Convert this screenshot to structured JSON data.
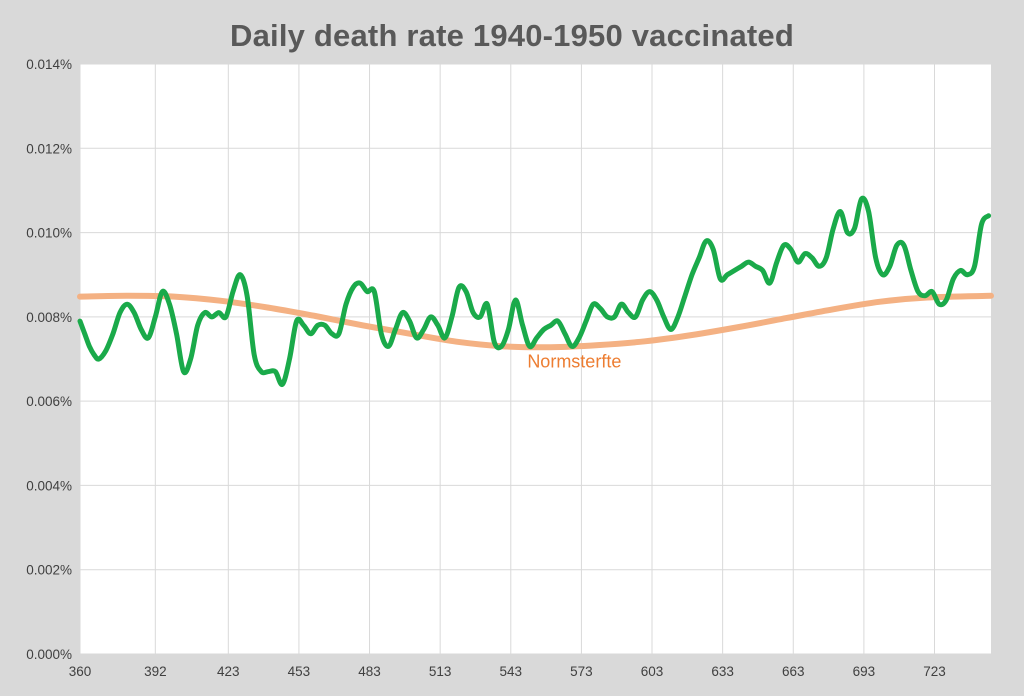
{
  "chart_data": {
    "type": "line",
    "title": "Daily death rate 1940-1950 vaccinated",
    "xlabel": "",
    "ylabel": "",
    "x_tick_labels": [
      "360",
      "392",
      "423",
      "453",
      "483",
      "513",
      "543",
      "573",
      "603",
      "633",
      "663",
      "693",
      "723"
    ],
    "xlim": [
      360,
      747
    ],
    "ylim": [
      0,
      0.014
    ],
    "y_tick_labels": [
      "0.000%",
      "0.002%",
      "0.004%",
      "0.006%",
      "0.008%",
      "0.010%",
      "0.012%",
      "0.014%"
    ],
    "y_ticks": [
      0,
      0.002,
      0.004,
      0.006,
      0.008,
      0.01,
      0.012,
      0.014
    ],
    "grid": true,
    "colors": {
      "observed": "#1aaa4a",
      "normsterfte": "#f4b183",
      "normsterfte_label": "#ed7d31"
    },
    "series": [
      {
        "name": "",
        "x": [
          360,
          362,
          364,
          366,
          368,
          371,
          374,
          377,
          380,
          383,
          386,
          389,
          392,
          395,
          398,
          401,
          404,
          407,
          410,
          413,
          416,
          419,
          422,
          425,
          428,
          431,
          434,
          437,
          440,
          443,
          446,
          449,
          452,
          455,
          458,
          461,
          464,
          467,
          470,
          473,
          476,
          479,
          482,
          485,
          488,
          491,
          494,
          497,
          500,
          503,
          506,
          509,
          512,
          515,
          518,
          521,
          524,
          527,
          530,
          533,
          536,
          539,
          542,
          545,
          548,
          551,
          554,
          557,
          560,
          563,
          566,
          569,
          572,
          575,
          578,
          581,
          584,
          587,
          590,
          593,
          596,
          599,
          602,
          605,
          608,
          611,
          614,
          617,
          620,
          623,
          626,
          629,
          632,
          635,
          638,
          641,
          644,
          647,
          650,
          653,
          656,
          659,
          662,
          665,
          668,
          671,
          674,
          677,
          680,
          683,
          686,
          689,
          692,
          695,
          698,
          701,
          704,
          707,
          710,
          713,
          716,
          719,
          722,
          725,
          728,
          731,
          734,
          737,
          740,
          743,
          746
        ],
        "values": [
          0.0079,
          0.0076,
          0.0073,
          0.0071,
          0.007,
          0.0072,
          0.0076,
          0.0081,
          0.0083,
          0.0081,
          0.0077,
          0.0075,
          0.008,
          0.0086,
          0.0083,
          0.0076,
          0.0067,
          0.007,
          0.0078,
          0.0081,
          0.008,
          0.0081,
          0.008,
          0.0086,
          0.009,
          0.0085,
          0.0071,
          0.0067,
          0.0067,
          0.0067,
          0.0064,
          0.007,
          0.0079,
          0.0078,
          0.0076,
          0.0078,
          0.0078,
          0.0076,
          0.0076,
          0.0083,
          0.0087,
          0.0088,
          0.0086,
          0.0086,
          0.0076,
          0.0073,
          0.0077,
          0.0081,
          0.0079,
          0.0075,
          0.0077,
          0.008,
          0.0078,
          0.0075,
          0.008,
          0.0087,
          0.0086,
          0.0081,
          0.008,
          0.0083,
          0.0074,
          0.0073,
          0.0077,
          0.0084,
          0.0078,
          0.0073,
          0.0075,
          0.0077,
          0.0078,
          0.0079,
          0.0076,
          0.0073,
          0.0075,
          0.0079,
          0.0083,
          0.0082,
          0.008,
          0.008,
          0.0083,
          0.0081,
          0.008,
          0.0084,
          0.0086,
          0.0084,
          0.008,
          0.0077,
          0.008,
          0.0085,
          0.009,
          0.0094,
          0.0098,
          0.0096,
          0.0089,
          0.009,
          0.0091,
          0.0092,
          0.0093,
          0.0092,
          0.0091,
          0.0088,
          0.0093,
          0.0097,
          0.0096,
          0.0093,
          0.0095,
          0.0094,
          0.0092,
          0.0094,
          0.0101,
          0.0105,
          0.01,
          0.0101,
          0.0108,
          0.0105,
          0.0094,
          0.009,
          0.0092,
          0.0097,
          0.0097,
          0.0091,
          0.0086,
          0.0085,
          0.0086,
          0.0083,
          0.0084,
          0.0089,
          0.0091,
          0.009,
          0.0092,
          0.0102,
          0.0104
        ]
      },
      {
        "name": "Normsterfte",
        "x": [
          360,
          380,
          400,
          420,
          440,
          460,
          480,
          500,
          520,
          540,
          560,
          580,
          600,
          620,
          640,
          660,
          680,
          700,
          720,
          747
        ],
        "values": [
          0.00848,
          0.0085,
          0.00848,
          0.00838,
          0.00822,
          0.00802,
          0.0078,
          0.0076,
          0.00741,
          0.0073,
          0.00728,
          0.00733,
          0.00742,
          0.00757,
          0.00776,
          0.00797,
          0.00818,
          0.00836,
          0.00846,
          0.0085
        ]
      }
    ],
    "annotations": [
      {
        "text": "Normsterfte",
        "series": "Normsterfte",
        "x": 570,
        "y": 0.0068
      }
    ]
  }
}
